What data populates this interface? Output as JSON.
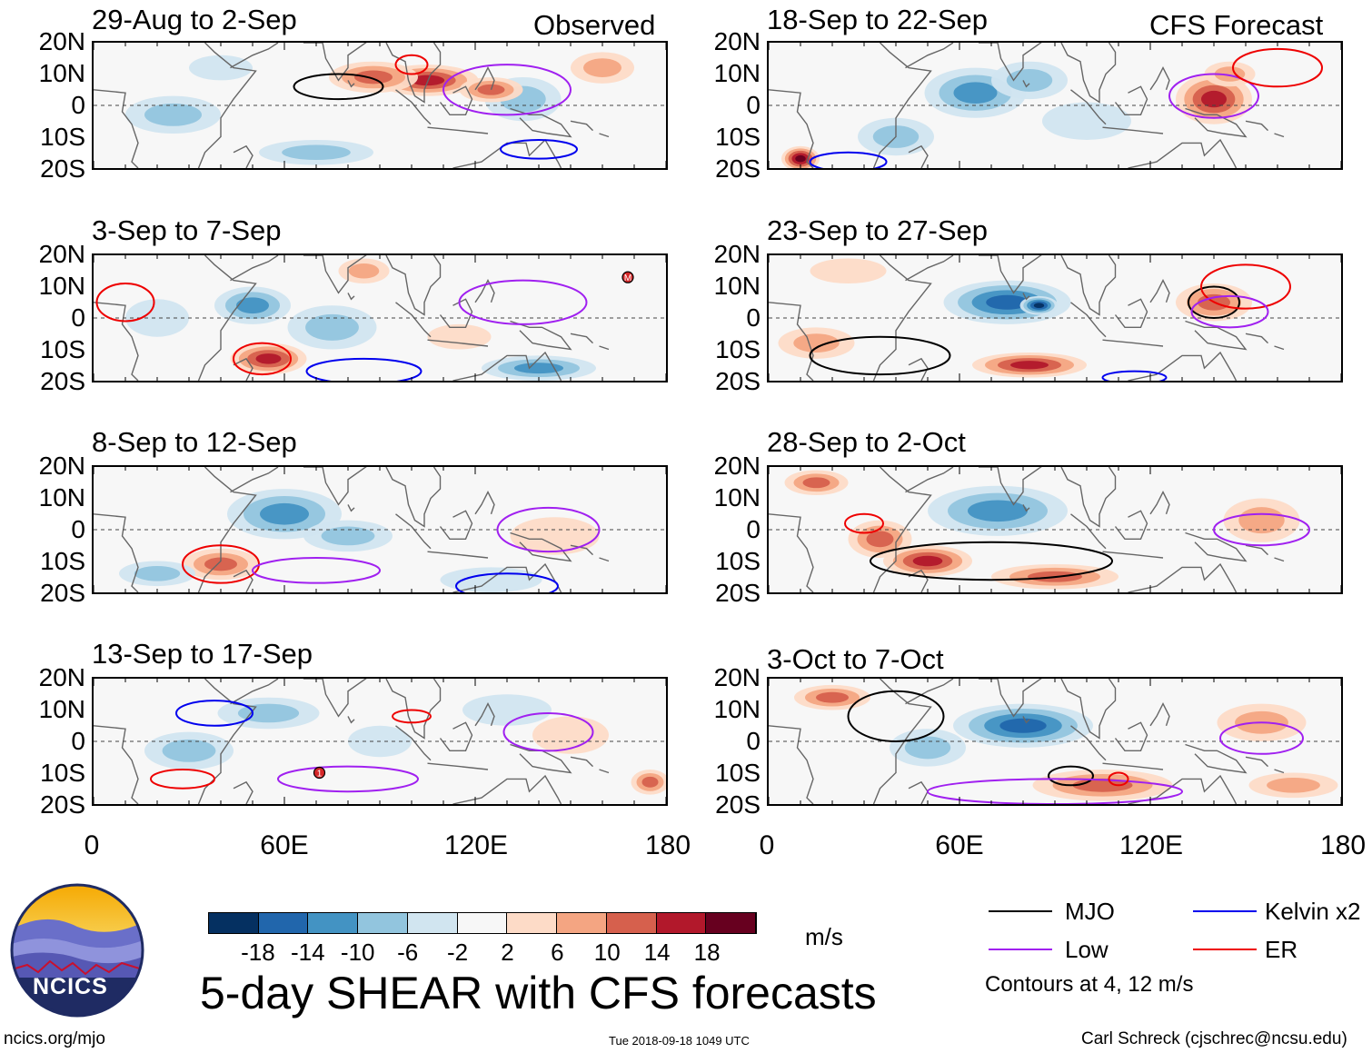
{
  "header": {
    "observed_label": "Observed",
    "forecast_label": "CFS Forecast"
  },
  "chart_data": {
    "type": "heatmap",
    "variable": "5-day SHEAR",
    "units": "m/s",
    "lat_ticks": [
      "20N",
      "10N",
      "0",
      "10S",
      "20S"
    ],
    "lon_ticks": [
      "0",
      "60E",
      "120E",
      "180"
    ],
    "lon_range": [
      0,
      180
    ],
    "lat_range": [
      -20,
      20
    ],
    "panels": [
      {
        "id": "p1",
        "column": "Observed",
        "period": "29-Aug to 2-Sep",
        "blobs": [
          [
            105,
            8,
            16,
            5,
            14
          ],
          [
            88,
            9,
            14,
            5,
            10
          ],
          [
            135,
            2,
            12,
            7,
            -6
          ],
          [
            25,
            -3,
            15,
            6,
            -6
          ],
          [
            70,
            -15,
            18,
            4,
            -8
          ],
          [
            40,
            12,
            10,
            4,
            -4
          ],
          [
            160,
            12,
            10,
            5,
            8
          ],
          [
            125,
            5,
            10,
            4,
            10
          ]
        ],
        "contours": [
          {
            "kind": "MJO",
            "lon": 77,
            "lat": 6,
            "rlon": 14,
            "rlat": 4
          },
          {
            "kind": "Low",
            "lon": 130,
            "lat": 5,
            "rlon": 20,
            "rlat": 8
          },
          {
            "kind": "ER",
            "lon": 100,
            "lat": 13,
            "rlon": 5,
            "rlat": 3
          },
          {
            "kind": "Kelvin",
            "lon": 140,
            "lat": -14,
            "rlon": 12,
            "rlat": 3
          }
        ]
      },
      {
        "id": "p2",
        "column": "CFS Forecast",
        "period": "18-Sep to 22-Sep",
        "blobs": [
          [
            65,
            4,
            16,
            8,
            -12
          ],
          [
            82,
            8,
            12,
            6,
            -8
          ],
          [
            140,
            2,
            12,
            8,
            14
          ],
          [
            10,
            -17,
            6,
            4,
            18
          ],
          [
            145,
            10,
            8,
            4,
            6
          ],
          [
            100,
            -5,
            14,
            6,
            -4
          ],
          [
            40,
            -10,
            12,
            6,
            -6
          ]
        ],
        "contours": [
          {
            "kind": "Low",
            "lon": 140,
            "lat": 3,
            "rlon": 14,
            "rlat": 7
          },
          {
            "kind": "ER",
            "lon": 160,
            "lat": 12,
            "rlon": 14,
            "rlat": 6
          },
          {
            "kind": "Kelvin",
            "lon": 25,
            "lat": -18,
            "rlon": 12,
            "rlat": 3
          }
        ]
      },
      {
        "id": "p3",
        "column": "Observed",
        "period": "3-Sep to 7-Sep",
        "blobs": [
          [
            50,
            4,
            12,
            6,
            -10
          ],
          [
            55,
            -13,
            12,
            5,
            14
          ],
          [
            140,
            -16,
            18,
            4,
            -10
          ],
          [
            75,
            -3,
            14,
            7,
            -6
          ],
          [
            85,
            15,
            8,
            4,
            6
          ],
          [
            20,
            0,
            10,
            6,
            -4
          ],
          [
            115,
            -6,
            10,
            4,
            4
          ]
        ],
        "contours": [
          {
            "kind": "Low",
            "lon": 135,
            "lat": 5,
            "rlon": 20,
            "rlat": 7
          },
          {
            "kind": "ER",
            "lon": 53,
            "lat": -13,
            "rlon": 9,
            "rlat": 5
          },
          {
            "kind": "ER",
            "lon": 10,
            "lat": 5,
            "rlon": 9,
            "rlat": 6
          },
          {
            "kind": "Kelvin",
            "lon": 85,
            "lat": -17,
            "rlon": 18,
            "rlat": 4
          }
        ]
      },
      {
        "id": "p4",
        "column": "CFS Forecast",
        "period": "23-Sep to 27-Sep",
        "blobs": [
          [
            75,
            5,
            20,
            7,
            -14
          ],
          [
            85,
            4,
            6,
            3,
            -18
          ],
          [
            82,
            -15,
            18,
            4,
            14
          ],
          [
            140,
            5,
            12,
            6,
            10
          ],
          [
            15,
            -8,
            12,
            5,
            6
          ],
          [
            25,
            15,
            12,
            4,
            4
          ]
        ],
        "contours": [
          {
            "kind": "MJO",
            "lon": 140,
            "lat": 5,
            "rlon": 8,
            "rlat": 5
          },
          {
            "kind": "MJO",
            "lon": 35,
            "lat": -12,
            "rlon": 22,
            "rlat": 6
          },
          {
            "kind": "ER",
            "lon": 150,
            "lat": 10,
            "rlon": 14,
            "rlat": 7
          },
          {
            "kind": "Low",
            "lon": 145,
            "lat": 2,
            "rlon": 12,
            "rlat": 5
          },
          {
            "kind": "Kelvin",
            "lon": 115,
            "lat": -19,
            "rlon": 10,
            "rlat": 2
          }
        ]
      },
      {
        "id": "p5",
        "column": "Observed",
        "period": "8-Sep to 12-Sep",
        "blobs": [
          [
            60,
            5,
            18,
            8,
            -12
          ],
          [
            40,
            -11,
            12,
            5,
            10
          ],
          [
            125,
            -16,
            16,
            4,
            -4
          ],
          [
            145,
            -2,
            14,
            6,
            4
          ],
          [
            20,
            -14,
            12,
            4,
            -6
          ],
          [
            80,
            -2,
            14,
            5,
            -6
          ]
        ],
        "contours": [
          {
            "kind": "Low",
            "lon": 143,
            "lat": 0,
            "rlon": 16,
            "rlat": 7
          },
          {
            "kind": "ER",
            "lon": 40,
            "lat": -11,
            "rlon": 12,
            "rlat": 6
          },
          {
            "kind": "Low",
            "lon": 70,
            "lat": -13,
            "rlon": 20,
            "rlat": 4
          },
          {
            "kind": "Kelvin",
            "lon": 130,
            "lat": -18,
            "rlon": 16,
            "rlat": 4
          }
        ]
      },
      {
        "id": "p6",
        "column": "CFS Forecast",
        "period": "28-Sep to 2-Oct",
        "blobs": [
          [
            72,
            6,
            22,
            8,
            -12
          ],
          [
            50,
            -10,
            14,
            5,
            16
          ],
          [
            35,
            -3,
            10,
            6,
            12
          ],
          [
            155,
            3,
            12,
            7,
            8
          ],
          [
            15,
            15,
            10,
            4,
            10
          ],
          [
            90,
            -15,
            20,
            4,
            10
          ]
        ],
        "contours": [
          {
            "kind": "MJO",
            "lon": 70,
            "lat": -10,
            "rlon": 38,
            "rlat": 6
          },
          {
            "kind": "Low",
            "lon": 155,
            "lat": 0,
            "rlon": 15,
            "rlat": 5
          },
          {
            "kind": "ER",
            "lon": 30,
            "lat": 2,
            "rlon": 6,
            "rlat": 3
          }
        ]
      },
      {
        "id": "p7",
        "column": "Observed",
        "period": "13-Sep to 17-Sep",
        "blobs": [
          [
            55,
            9,
            16,
            5,
            -8
          ],
          [
            30,
            -3,
            14,
            6,
            -6
          ],
          [
            130,
            10,
            14,
            5,
            -4
          ],
          [
            175,
            -13,
            6,
            4,
            12
          ],
          [
            150,
            2,
            12,
            6,
            4
          ],
          [
            90,
            0,
            10,
            5,
            -4
          ]
        ],
        "contours": [
          {
            "kind": "Kelvin",
            "lon": 38,
            "lat": 9,
            "rlon": 12,
            "rlat": 4
          },
          {
            "kind": "Low",
            "lon": 143,
            "lat": 3,
            "rlon": 14,
            "rlat": 6
          },
          {
            "kind": "ER",
            "lon": 100,
            "lat": 8,
            "rlon": 6,
            "rlat": 2
          },
          {
            "kind": "ER",
            "lon": 28,
            "lat": -12,
            "rlon": 10,
            "rlat": 3
          },
          {
            "kind": "Low",
            "lon": 80,
            "lat": -12,
            "rlon": 22,
            "rlat": 4
          }
        ]
      },
      {
        "id": "p8",
        "column": "CFS Forecast",
        "period": "3-Oct to 7-Oct",
        "blobs": [
          [
            80,
            5,
            22,
            7,
            -14
          ],
          [
            105,
            -14,
            22,
            5,
            12
          ],
          [
            20,
            14,
            12,
            4,
            10
          ],
          [
            155,
            6,
            14,
            6,
            8
          ],
          [
            50,
            -2,
            12,
            6,
            -6
          ],
          [
            165,
            -14,
            14,
            4,
            6
          ]
        ],
        "contours": [
          {
            "kind": "MJO",
            "lon": 95,
            "lat": -11,
            "rlon": 7,
            "rlat": 3
          },
          {
            "kind": "MJO",
            "lon": 40,
            "lat": 8,
            "rlon": 15,
            "rlat": 8
          },
          {
            "kind": "Low",
            "lon": 155,
            "lat": 1,
            "rlon": 13,
            "rlat": 5
          },
          {
            "kind": "Low",
            "lon": 90,
            "lat": -16,
            "rlon": 40,
            "rlat": 4
          },
          {
            "kind": "ER",
            "lon": 110,
            "lat": -12,
            "rlon": 3,
            "rlat": 2
          }
        ]
      }
    ],
    "storm_markers": [
      {
        "panel": "p3",
        "label": "M",
        "lon": 168,
        "lat": 13
      },
      {
        "panel": "p7",
        "label": "1",
        "lon": 71,
        "lat": -10
      }
    ]
  },
  "colorbar": {
    "colors": [
      "#053061",
      "#2166ac",
      "#4393c3",
      "#92c5de",
      "#d1e5f0",
      "#f7f7f7",
      "#fddbc7",
      "#f4a582",
      "#d6604d",
      "#b2182b",
      "#67001f"
    ],
    "tick_labels": [
      "-18",
      "-14",
      "-10",
      "-6",
      "-2",
      "2",
      "6",
      "10",
      "14",
      "18"
    ],
    "units": "m/s"
  },
  "legend": {
    "items": [
      {
        "kind": "MJO",
        "label": "MJO",
        "color": "#000000"
      },
      {
        "kind": "Kelvin",
        "label": "Kelvin x2",
        "color": "#0000ee"
      },
      {
        "kind": "Low",
        "label": "Low",
        "color": "#a020f0"
      },
      {
        "kind": "ER",
        "label": "ER",
        "color": "#ee0000"
      }
    ],
    "note": "Contours at 4, 12 m/s"
  },
  "logo": {
    "text": "NCICS"
  },
  "title": "5-day SHEAR with CFS forecasts",
  "footer": {
    "url": "ncics.org/mjo",
    "timestamp": "Tue 2018-09-18 1049 UTC",
    "credit": "Carl Schreck (cjschrec@ncsu.edu)"
  }
}
